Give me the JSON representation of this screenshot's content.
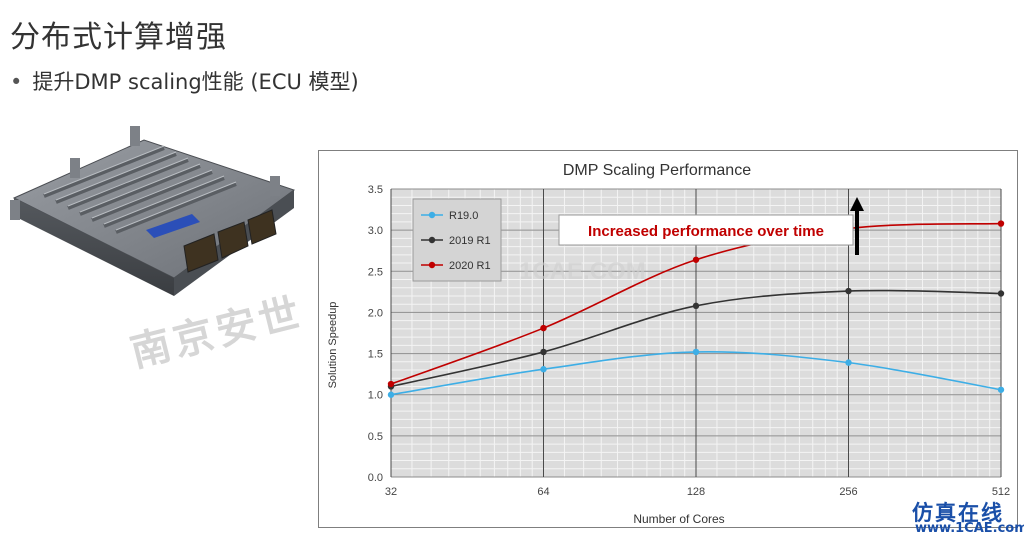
{
  "slide": {
    "title": "分布式计算增强",
    "bullet": "提升DMP scaling性能 (ECU 模型)"
  },
  "watermarks": {
    "diagonal": "南京安世",
    "corner_line1": "仿真在线",
    "corner_line2": "www.1CAE.com",
    "chart_faint": "1CAE.COM"
  },
  "chart_data": {
    "type": "line",
    "title": "DMP Scaling Performance",
    "xlabel": "Number of Cores",
    "ylabel": "Solution Speedup",
    "x": [
      32,
      64,
      128,
      256,
      512
    ],
    "x_scale": "log2",
    "y_ticks": [
      "0.0",
      "0.5",
      "1.0",
      "1.5",
      "2.0",
      "2.5",
      "3.0",
      "3.5"
    ],
    "ylim": [
      0,
      3.5
    ],
    "grid": true,
    "legend_position": "top-left",
    "series": [
      {
        "name": "R19.0",
        "color": "#3daee6",
        "values": [
          1.0,
          1.31,
          1.52,
          1.39,
          1.06
        ]
      },
      {
        "name": "2019 R1",
        "color": "#333333",
        "values": [
          1.1,
          1.52,
          2.08,
          2.26,
          2.23
        ]
      },
      {
        "name": "2020 R1",
        "color": "#c00000",
        "values": [
          1.13,
          1.81,
          2.64,
          3.02,
          3.08
        ]
      }
    ],
    "annotation": {
      "text": "Increased performance over time",
      "color": "#c00000"
    }
  }
}
